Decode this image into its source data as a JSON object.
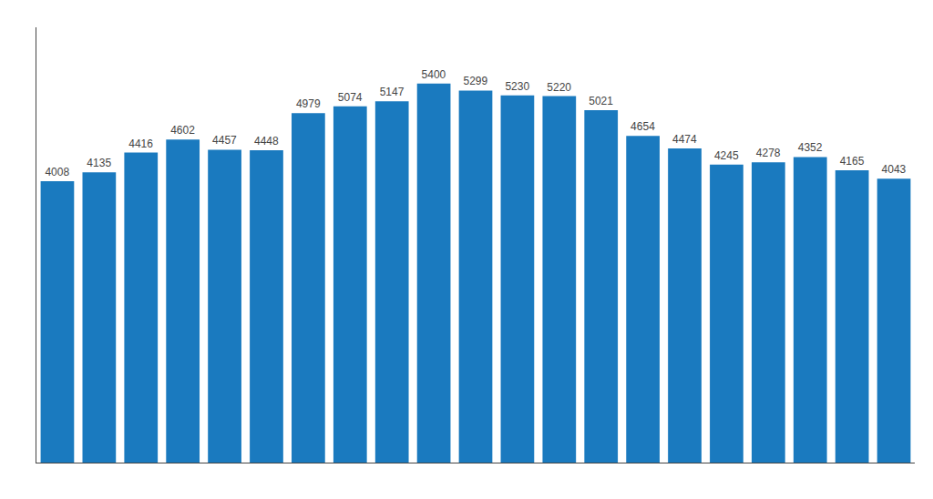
{
  "chart_data": {
    "type": "bar",
    "categories": [
      null,
      null,
      null,
      null,
      null,
      null,
      null,
      null,
      null,
      null,
      null,
      null,
      null,
      null,
      null,
      null,
      null,
      null,
      null,
      null,
      null
    ],
    "values": [
      4008,
      4135,
      4416,
      4602,
      4457,
      4448,
      4979,
      5074,
      5147,
      5400,
      5299,
      5230,
      5220,
      5021,
      4654,
      4474,
      4245,
      4278,
      4352,
      4165,
      4043
    ],
    "color": "#1a7abf",
    "ylim": [
      0,
      6200
    ],
    "yticks": [],
    "grid": false,
    "data_labels": true,
    "tick_labels": false
  }
}
